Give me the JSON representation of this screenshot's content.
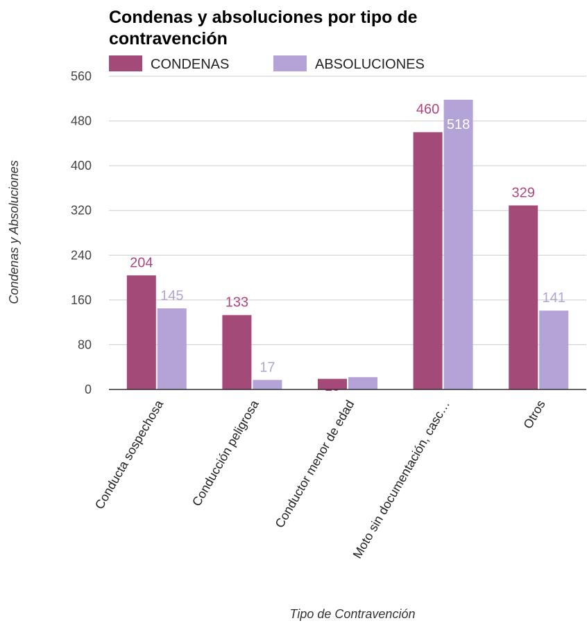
{
  "chart_data": {
    "type": "bar",
    "title_lines": [
      "Condenas y absoluciones por tipo de",
      "contravención"
    ],
    "xlabel": "Tipo de Contravención",
    "ylabel": "Condenas y Absoluciones",
    "ylim": [
      0,
      560
    ],
    "yticks": [
      "0",
      "80",
      "160",
      "240",
      "320",
      "400",
      "480",
      "560"
    ],
    "grid": true,
    "legend_position": "top",
    "categories": [
      "Conducta sospechosa",
      "Conducción peligrosa",
      "Conductor menor de edad",
      "Moto sin documentación, casc…",
      "Otros"
    ],
    "series": [
      {
        "name": "CONDENAS",
        "color": "#a44a78",
        "label_color": "#b0457d",
        "values": [
          204,
          133,
          19,
          460,
          329
        ]
      },
      {
        "name": "ABSOLUCIONES",
        "color": "#b3a3d6",
        "label_color": "#b3a3d6",
        "values": [
          145,
          17,
          22,
          518,
          141
        ]
      }
    ]
  }
}
